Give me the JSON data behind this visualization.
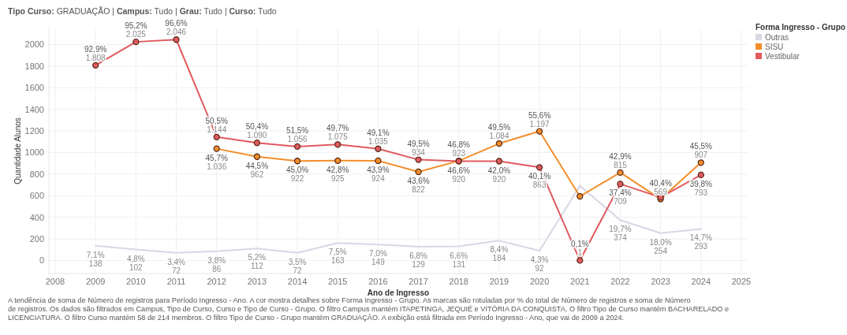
{
  "chart_data": {
    "type": "line",
    "title": "Tipo Curso: GRADUAÇÃO | Campus: Tudo | Grau: Tudo | Curso: Tudo",
    "xlabel": "Ano de Ingresso",
    "ylabel": "Quantidade Alunos",
    "legend_title": "Forma Ingresso - Grupo",
    "legend": "right",
    "x": [
      2009,
      2010,
      2011,
      2012,
      2013,
      2014,
      2015,
      2016,
      2017,
      2018,
      2019,
      2020,
      2021,
      2022,
      2023,
      2024
    ],
    "xlim": [
      2008,
      2025
    ],
    "xticks": [
      2008,
      2009,
      2010,
      2011,
      2012,
      2013,
      2014,
      2015,
      2016,
      2017,
      2018,
      2019,
      2020,
      2021,
      2022,
      2023,
      2024,
      2025
    ],
    "ylim": [
      -120,
      2150
    ],
    "yticks": [
      0,
      200,
      400,
      600,
      800,
      1000,
      1200,
      1400,
      1600,
      1800,
      2000
    ],
    "grid": true,
    "series": [
      {
        "name": "Outras",
        "color": "#d6d8e4",
        "values": [
          138,
          102,
          72,
          86,
          112,
          72,
          163,
          149,
          129,
          131,
          184,
          92,
          693,
          374,
          254,
          293
        ],
        "value_labels": [
          "7,1%\n138",
          "4,8%\n102",
          "3,4%\n72",
          "3,8%\n86",
          "5,2%\n112",
          "3,5%\n72",
          "7,5%\n163",
          "7,0%\n149",
          "6,8%\n129",
          "6,6%\n131",
          "8,4%\n184",
          "4,3%\n92",
          null,
          "19,7%\n374",
          "18,0%\n254",
          "14,7%\n293"
        ]
      },
      {
        "name": "SISU",
        "color": "#f28e2b",
        "marker": "circle",
        "values": [
          null,
          null,
          null,
          1036,
          962,
          922,
          925,
          924,
          822,
          923,
          1084,
          1197,
          595,
          815,
          569,
          907
        ],
        "value_labels": [
          null,
          null,
          null,
          "45,7%\n1.036",
          "44,5%\n962",
          "45,0%\n922",
          "42,8%\n925",
          "43,9%\n924",
          "43,6%\n822",
          "46,8%\n923",
          "49,5%\n1.084",
          "55,6%\n1.197",
          null,
          "42,9%\n815",
          "40,4%\n569",
          "45,5%\n907"
        ]
      },
      {
        "name": "Vestibular",
        "color": "#e05a5f",
        "marker": "circle",
        "values": [
          1808,
          2025,
          2046,
          1144,
          1090,
          1056,
          1075,
          1035,
          934,
          920,
          920,
          863,
          1,
          709,
          585,
          793
        ],
        "value_labels": [
          "92,9%\n1.808",
          "95,2%\n2.025",
          "96,6%\n2.046",
          "50,5%\n1.144",
          "50,4%\n1.090",
          "51,5%\n1.056",
          "49,7%\n1.075",
          "49,1%\n1.035",
          "49,5%\n934",
          "46,6%\n920",
          "42,0%\n920",
          "40,1%\n863",
          "0,1%\n1",
          "37,4%\n709",
          null,
          "39,8%\n793"
        ]
      }
    ],
    "annotations": [
      "A tendência de soma de Número de registros para Período Ingresso - Ano.  A cor mostra detalhes sobre Forma Ingresso - Grupo.  As marcas são rotuladas por % do total de Número de registros e soma de Número de registros. Os dados são filtrados em Campus, Tipo de Curso, Curso e Tipo de Curso - Grupo. O filtro Campus mantém ITAPETINGA, JEQUIÉ e VITÓRIA DA CONQUISTA. O filtro Tipo de Curso mantém BACHARELADO e LICENCIATURA. O filtro Curso mantém 58 de 214 membros. O filtro Tipo de Curso - Grupo mantém GRADUAÇÃO. A exibição está filtrada em Período Ingresso - Ano, que vai de 2009 a 2024."
    ]
  }
}
